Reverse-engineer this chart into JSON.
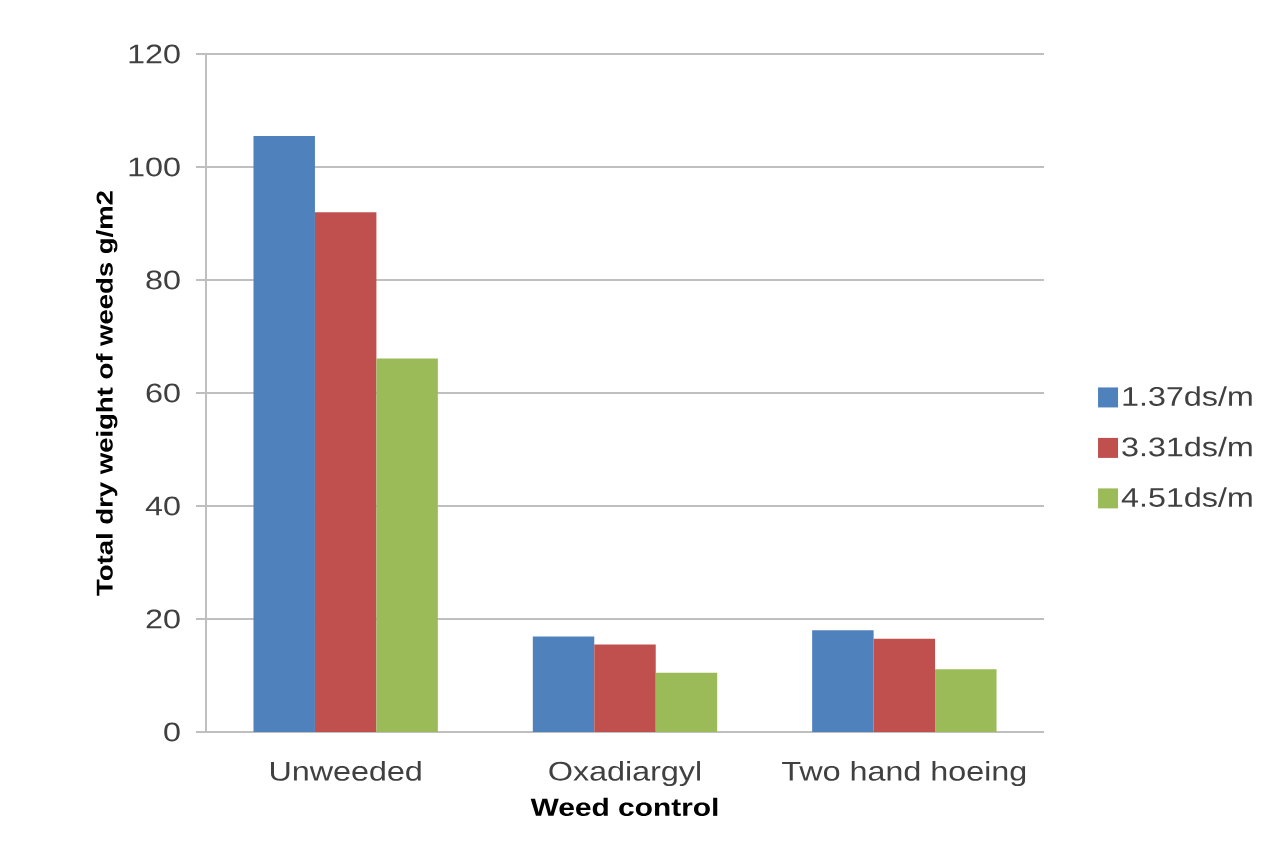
{
  "chart_data": {
    "type": "bar",
    "xlabel": "Weed control",
    "ylabel": "Total dry weight of weeds g/m2",
    "categories": [
      "Unweeded",
      "Oxadiargyl",
      "Two hand hoeing"
    ],
    "series": [
      {
        "name": "1.37ds/m",
        "color": "#4f81bd",
        "values": [
          105.5,
          16.9,
          18.0
        ]
      },
      {
        "name": "3.31ds/m",
        "color": "#c0504d",
        "values": [
          92.0,
          15.5,
          16.5
        ]
      },
      {
        "name": "4.51ds/m",
        "color": "#9bbb59",
        "values": [
          66.1,
          10.5,
          11.1
        ]
      }
    ],
    "ylim": [
      0,
      120
    ],
    "yticks": [
      0,
      20,
      40,
      60,
      80,
      100,
      120
    ],
    "grid": "y",
    "legend": "right"
  }
}
